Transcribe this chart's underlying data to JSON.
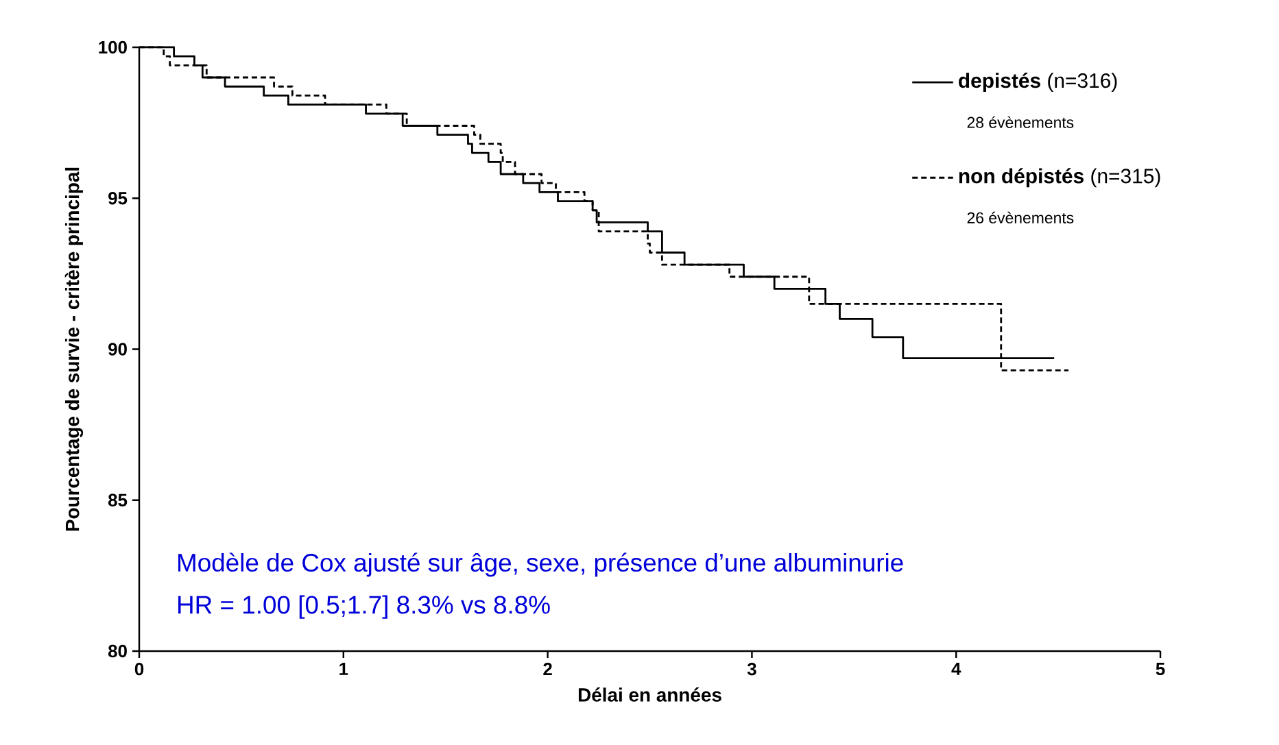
{
  "chart_data": {
    "type": "step",
    "xlabel": "Délai en années",
    "ylabel": "Pourcentage de survie - critère principal",
    "xlim": [
      0,
      5
    ],
    "ylim": [
      80,
      100
    ],
    "xticks": [
      0,
      1,
      2,
      3,
      4,
      5
    ],
    "yticks": [
      80,
      85,
      90,
      95,
      100
    ],
    "grid": false,
    "legend": "top right",
    "marker": "none",
    "series": [
      {
        "name": "**depistés** (n=316)",
        "color": "#000000",
        "line_style": "solid",
        "x": [
          0,
          0.17,
          0.27,
          0.31,
          0.42,
          0.61,
          0.73,
          1.11,
          1.29,
          1.46,
          1.61,
          1.63,
          1.71,
          1.77,
          1.88,
          1.96,
          2.05,
          2.22,
          2.24,
          2.49,
          2.56,
          2.67,
          2.96,
          3.11,
          3.36,
          3.43,
          3.59,
          3.74,
          4.48
        ],
        "values": [
          100,
          99.7,
          99.4,
          99.0,
          98.7,
          98.4,
          98.1,
          97.8,
          97.4,
          97.1,
          96.8,
          96.5,
          96.2,
          95.8,
          95.5,
          95.2,
          94.9,
          94.6,
          94.2,
          93.9,
          93.2,
          92.8,
          92.4,
          92.0,
          91.5,
          91.0,
          90.4,
          89.7,
          89.7
        ]
      },
      {
        "name": "**non dépistés** (n=315)",
        "color": "#000000",
        "line_style": "dashed",
        "x": [
          0,
          0.12,
          0.15,
          0.33,
          0.66,
          0.75,
          0.91,
          1.21,
          1.31,
          1.64,
          1.67,
          1.77,
          1.78,
          1.84,
          1.97,
          2.04,
          2.18,
          2.22,
          2.25,
          2.49,
          2.5,
          2.56,
          2.89,
          3.28,
          4.22,
          4.55
        ],
        "values": [
          100,
          99.7,
          99.4,
          99.0,
          98.7,
          98.4,
          98.1,
          97.8,
          97.4,
          97.1,
          96.8,
          96.5,
          96.2,
          95.8,
          95.5,
          95.2,
          94.9,
          94.6,
          93.9,
          93.5,
          93.2,
          92.8,
          92.4,
          91.5,
          89.3,
          89.3
        ]
      }
    ],
    "annotations": [
      "28 évènements",
      "26 évènements",
      "Modèle de Cox ajusté sur âge, sexe, présence d’une albuminurie",
      "HR = 1.00 [0.5;1.7] 8.3% vs 8.8%"
    ]
  }
}
